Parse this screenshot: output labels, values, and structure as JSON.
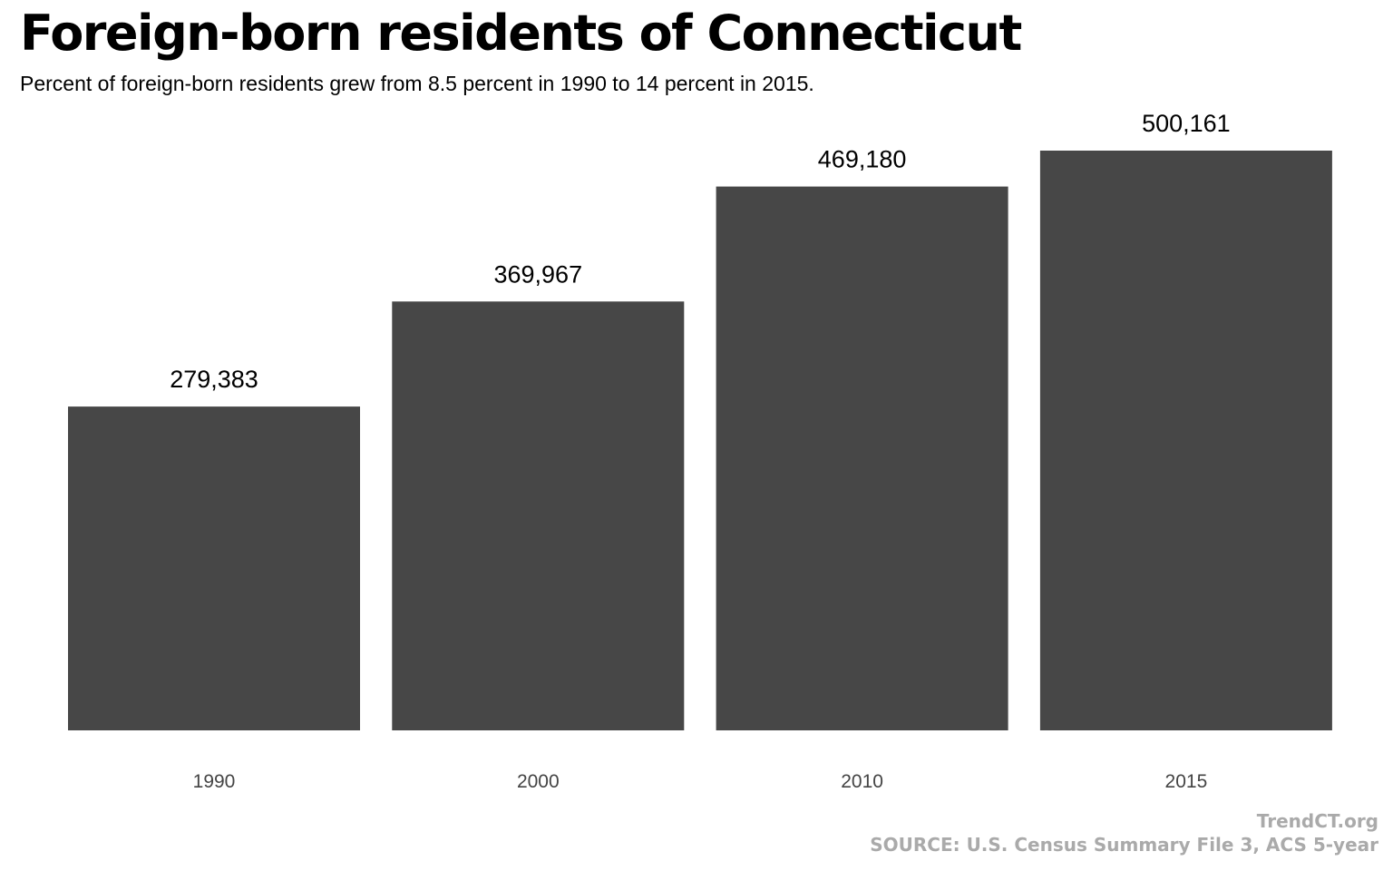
{
  "title": "Foreign-born residents of Connecticut",
  "subtitle": "Percent of foreign-born residents grew from 8.5 percent in 1990 to 14 percent in 2015.",
  "credit": "TrendCT.org",
  "source": "SOURCE: U.S. Census Summary File 3, ACS 5-year",
  "colors": {
    "bar": "#474747",
    "value_label": "#000000",
    "tick_label": "#444444",
    "footer": "#aaaaaa"
  },
  "chart_data": {
    "type": "bar",
    "categories": [
      "1990",
      "2000",
      "2010",
      "2015"
    ],
    "values": [
      279383,
      369967,
      469180,
      500161
    ],
    "value_labels": [
      "279,383",
      "369,967",
      "469,180",
      "500,161"
    ],
    "title": "Foreign-born residents of Connecticut",
    "subtitle": "Percent of foreign-born residents grew from 8.5 percent in 1990 to 14 percent in 2015.",
    "xlabel": "",
    "ylabel": "",
    "ylim": [
      0,
      500161
    ],
    "grid": false,
    "legend": "none"
  }
}
